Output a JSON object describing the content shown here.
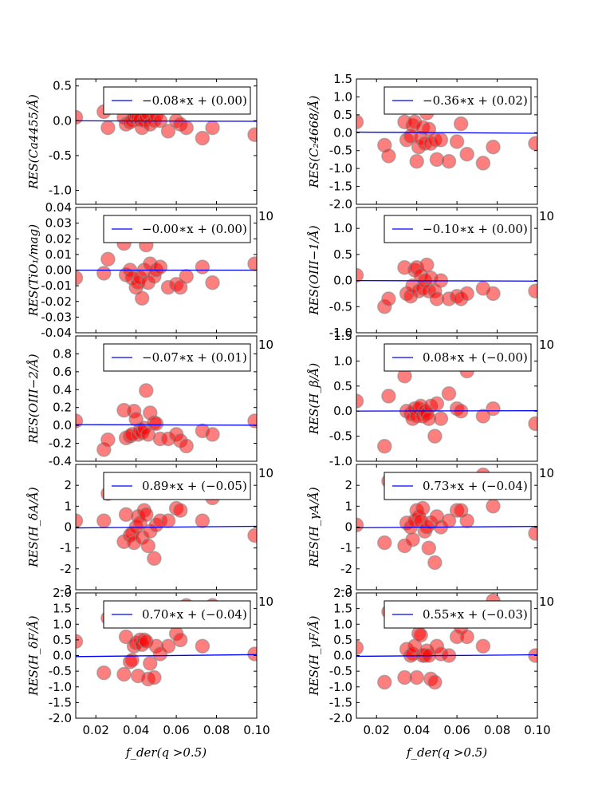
{
  "chart_data": {
    "type": "scatter",
    "layout": "grid 5 rows x 2 columns",
    "marker_color": "#ff0000",
    "line_color": "#0000ff",
    "xlim": [
      0.01,
      0.1
    ],
    "xticks": [
      0.02,
      0.04,
      0.06,
      0.08,
      0.1
    ],
    "xtick_labels": [
      "0.02",
      "0.04",
      "0.06",
      "0.08",
      "0.10"
    ],
    "xlabel": "f_der(q >0.5)",
    "stray_tick_label": "10",
    "x": [
      0.01,
      0.024,
      0.026,
      0.034,
      0.035,
      0.037,
      0.038,
      0.039,
      0.04,
      0.041,
      0.042,
      0.043,
      0.044,
      0.045,
      0.046,
      0.047,
      0.049,
      0.05,
      0.052,
      0.056,
      0.06,
      0.062,
      0.065,
      0.073,
      0.078,
      0.099
    ],
    "panels": [
      {
        "name": "ca4455",
        "ylabel": "RES(Ca4455/Å)",
        "ylim": [
          -1.2,
          0.6
        ],
        "yticks": [
          "0.5",
          "0.0",
          "-0.5",
          "-1.0"
        ],
        "ytick_values": [
          0.5,
          0.0,
          -0.5,
          -1.0
        ],
        "legend": "−0.08∗x + (0.00)",
        "slope": -0.08,
        "intercept": 0.0,
        "y": [
          0.05,
          0.13,
          -0.1,
          0.05,
          -0.05,
          -0.02,
          0.0,
          0.05,
          0.08,
          0.05,
          0.02,
          -0.1,
          0.0,
          0.05,
          0.1,
          -0.05,
          0.0,
          0.08,
          0.0,
          -0.15,
          0.0,
          -0.05,
          -0.1,
          -0.25,
          -0.1,
          -0.2
        ]
      },
      {
        "name": "c24668",
        "ylabel": "RES(C₂4668/Å)",
        "ylim": [
          -2.0,
          1.5
        ],
        "yticks": [
          "1.5",
          "1.0",
          "0.5",
          "0.0",
          "-0.5",
          "-1.0",
          "-1.5",
          "-2.0"
        ],
        "ytick_values": [
          1.5,
          1.0,
          0.5,
          0.0,
          -0.5,
          -1.0,
          -1.5,
          -2.0
        ],
        "legend": "−0.36∗x + (0.02)",
        "slope": -0.36,
        "intercept": 0.02,
        "y": [
          0.3,
          -0.35,
          -0.65,
          0.3,
          -0.2,
          -0.1,
          0.2,
          0.3,
          -0.8,
          -0.4,
          -0.15,
          0.15,
          -0.3,
          0.55,
          0.1,
          -0.3,
          -0.2,
          -0.75,
          -0.2,
          -0.8,
          -0.25,
          0.25,
          -0.6,
          -0.85,
          -0.4,
          -0.3
        ]
      },
      {
        "name": "tio1",
        "ylabel": "RES(TiO₁/mag)",
        "ylim": [
          -0.04,
          0.04
        ],
        "yticks": [
          "0.04",
          "0.03",
          "0.02",
          "0.01",
          "0.00",
          "-0.01",
          "-0.02",
          "-0.03",
          "-0.04"
        ],
        "ytick_values": [
          0.04,
          0.03,
          0.02,
          0.01,
          0.0,
          -0.01,
          -0.02,
          -0.03,
          -0.04
        ],
        "legend": "−0.00∗x + (0.00)",
        "slope": 0.0,
        "intercept": 0.0,
        "y": [
          -0.005,
          -0.002,
          0.007,
          0.017,
          -0.003,
          0.0,
          -0.005,
          0.022,
          -0.011,
          -0.008,
          -0.005,
          -0.018,
          0.0,
          0.016,
          -0.008,
          0.004,
          -0.004,
          0.0,
          0.002,
          -0.011,
          -0.009,
          -0.011,
          -0.004,
          0.002,
          -0.008,
          0.004
        ]
      },
      {
        "name": "oiii1",
        "ylabel": "RES(OIII−1/Å)",
        "ylim": [
          -1.0,
          1.4
        ],
        "yticks": [
          "1.0",
          "0.5",
          "0.0",
          "-0.5",
          "-1.0"
        ],
        "ytick_values": [
          1.0,
          0.5,
          0.0,
          -0.5,
          -1.0
        ],
        "legend": "−0.10∗x + (0.00)",
        "slope": -0.1,
        "intercept": 0.0,
        "y": [
          0.1,
          -0.5,
          -0.35,
          0.25,
          -0.25,
          -0.3,
          -0.1,
          0.2,
          0.25,
          -0.2,
          0.1,
          -0.15,
          0.0,
          0.3,
          -0.2,
          0.05,
          -0.2,
          -0.35,
          0.0,
          -0.35,
          -0.3,
          -0.35,
          -0.25,
          -0.15,
          -0.25,
          -0.2
        ]
      },
      {
        "name": "oiii2",
        "ylabel": "RES(OIII−2/Å)",
        "ylim": [
          -0.4,
          1.0
        ],
        "yticks": [
          "0.8",
          "0.6",
          "0.4",
          "0.2",
          "0.0",
          "-0.2",
          "-0.4"
        ],
        "ytick_values": [
          0.8,
          0.6,
          0.4,
          0.2,
          0.0,
          -0.2,
          -0.4
        ],
        "legend": "−0.07∗x + (0.01)",
        "slope": -0.07,
        "intercept": 0.01,
        "y": [
          0.05,
          -0.27,
          -0.16,
          0.17,
          -0.14,
          -0.12,
          -0.1,
          0.16,
          0.07,
          -0.1,
          -0.05,
          -0.08,
          -0.03,
          0.39,
          -0.1,
          0.14,
          0.03,
          0.02,
          -0.15,
          -0.15,
          -0.1,
          -0.17,
          -0.23,
          -0.06,
          -0.1,
          0.05
        ]
      },
      {
        "name": "hbeta",
        "ylabel": "RES(H_β/Å)",
        "ylim": [
          -1.0,
          1.5
        ],
        "yticks": [
          "1.5",
          "1.0",
          "0.5",
          "0.0",
          "-0.5",
          "-1.0"
        ],
        "ytick_values": [
          1.5,
          1.0,
          0.5,
          0.0,
          -0.5,
          -1.0
        ],
        "legend": "0.08∗x + (−0.00)",
        "slope": 0.08,
        "intercept": 0.0,
        "y": [
          0.2,
          -0.7,
          0.3,
          0.7,
          0.0,
          -0.05,
          -0.15,
          0.05,
          -0.1,
          0.05,
          0.1,
          -0.1,
          0.0,
          -0.05,
          -0.15,
          0.1,
          -0.5,
          0.15,
          -0.15,
          0.35,
          0.05,
          0.0,
          0.8,
          -0.1,
          0.05,
          -0.25
        ]
      },
      {
        "name": "hdeltaA",
        "ylabel": "RES(H_δA/Å)",
        "ylim": [
          -3,
          3
        ],
        "yticks": [
          "2",
          "1",
          "0",
          "-1",
          "-2",
          "-3"
        ],
        "ytick_values": [
          2,
          1,
          0,
          -1,
          -2,
          -3
        ],
        "legend": "0.89∗x + (−0.05)",
        "slope": 0.89,
        "intercept": -0.05,
        "y": [
          0.3,
          0.3,
          1.6,
          -0.7,
          0.6,
          -0.4,
          -0.3,
          -0.75,
          0.0,
          0.5,
          0.2,
          -0.5,
          0.8,
          0.6,
          -0.9,
          -0.2,
          -1.5,
          0.1,
          0.3,
          0.3,
          0.9,
          0.8,
          2.2,
          0.3,
          1.4,
          -0.4
        ]
      },
      {
        "name": "hgammaA",
        "ylabel": "RES(H_γA/Å)",
        "ylim": [
          -3,
          3
        ],
        "yticks": [
          "2",
          "1",
          "0",
          "-1",
          "-2",
          "-3"
        ],
        "ytick_values": [
          2,
          1,
          0,
          -1,
          -2,
          -3
        ],
        "legend": "0.73∗x + (−0.04)",
        "slope": 0.73,
        "intercept": -0.04,
        "y": [
          0.1,
          -0.75,
          2.2,
          -0.9,
          0.2,
          0.0,
          -0.6,
          0.3,
          0.8,
          0.5,
          0.3,
          0.9,
          -0.2,
          0.0,
          -1.0,
          0.2,
          -1.7,
          0.5,
          0.0,
          0.3,
          0.8,
          0.8,
          0.3,
          2.5,
          1.0,
          -0.3
        ]
      },
      {
        "name": "hdeltaF",
        "ylabel": "RES(H_δF/Å)",
        "ylim": [
          -2.0,
          2.0
        ],
        "yticks": [
          "2.0",
          "1.5",
          "1.0",
          "0.5",
          "0.0",
          "-0.5",
          "-1.0",
          "-1.5",
          "-2.0"
        ],
        "ytick_values": [
          2.0,
          1.5,
          1.0,
          0.5,
          0.0,
          -0.5,
          -1.0,
          -1.5,
          -2.0
        ],
        "legend": "0.70∗x + (−0.04)",
        "slope": 0.7,
        "intercept": -0.04,
        "y": [
          0.45,
          -0.55,
          1.2,
          -0.6,
          0.6,
          -0.2,
          -0.15,
          0.3,
          0.4,
          -0.65,
          0.5,
          0.35,
          0.5,
          0.45,
          -0.75,
          -0.25,
          -0.7,
          0.3,
          0.05,
          0.3,
          0.7,
          0.5,
          1.6,
          0.3,
          1.6,
          0.05
        ]
      },
      {
        "name": "hgammaF",
        "ylabel": "RES(H_γF/Å)",
        "ylim": [
          -2.0,
          2.0
        ],
        "yticks": [
          "2.0",
          "1.5",
          "1.0",
          "0.5",
          "0.0",
          "-0.5",
          "-1.0",
          "-1.5",
          "-2.0"
        ],
        "ytick_values": [
          2.0,
          1.5,
          1.0,
          0.5,
          0.0,
          -0.5,
          -1.0,
          -1.5,
          -2.0
        ],
        "legend": "0.55∗x + (−0.03)",
        "slope": 0.55,
        "intercept": -0.03,
        "y": [
          0.25,
          -0.85,
          1.4,
          -0.7,
          0.2,
          0.0,
          0.05,
          0.3,
          -0.7,
          0.7,
          0.65,
          0.0,
          0.0,
          0.15,
          0.0,
          -0.75,
          -0.85,
          0.3,
          0.05,
          0.0,
          0.6,
          0.9,
          0.6,
          0.3,
          1.75,
          0.0
        ]
      }
    ]
  }
}
